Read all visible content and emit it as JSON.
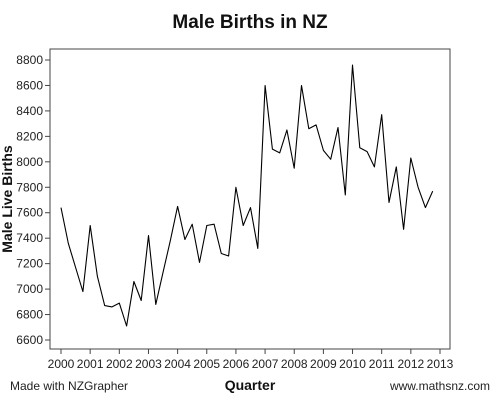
{
  "chart_data": {
    "type": "line",
    "title": "Male Births in NZ",
    "xlabel": "Quarter",
    "ylabel": "Male Live Births",
    "xlim": [
      2000,
      2013
    ],
    "ylim": [
      6600,
      8800
    ],
    "x_ticks": [
      "2000",
      "2001",
      "2002",
      "2003",
      "2004",
      "2005",
      "2006",
      "2007",
      "2008",
      "2009",
      "2010",
      "2011",
      "2012",
      "2013"
    ],
    "y_ticks": [
      "6600",
      "6800",
      "7000",
      "7200",
      "7400",
      "7600",
      "7800",
      "8000",
      "8200",
      "8400",
      "8600",
      "8800"
    ],
    "grid": false,
    "legend": "none",
    "line_color": "#000000",
    "series": [
      {
        "x": [
          2000.0,
          2000.25,
          2000.5,
          2000.75,
          2001.0,
          2001.25,
          2001.5,
          2001.75,
          2002.0,
          2002.25,
          2002.5,
          2002.75,
          2003.0,
          2003.25,
          2003.5,
          2003.75,
          2004.0,
          2004.25,
          2004.5,
          2004.75,
          2005.0,
          2005.25,
          2005.5,
          2005.75,
          2006.0,
          2006.25,
          2006.5,
          2006.75,
          2007.0,
          2007.25,
          2007.5,
          2007.75,
          2008.0,
          2008.25,
          2008.5,
          2008.75,
          2009.0,
          2009.25,
          2009.5,
          2009.75,
          2010.0,
          2010.25,
          2010.5,
          2010.75,
          2011.0,
          2011.25,
          2011.5,
          2011.75,
          2012.0,
          2012.25,
          2012.5,
          2012.75
        ],
        "y": [
          7640,
          7360,
          7170,
          6980,
          7500,
          7100,
          6870,
          6860,
          6890,
          6710,
          7060,
          6910,
          7420,
          6880,
          7130,
          7380,
          7650,
          7390,
          7510,
          7210,
          7500,
          7510,
          7280,
          7260,
          7800,
          7500,
          7640,
          7320,
          8600,
          8100,
          8070,
          8250,
          7950,
          8600,
          8260,
          8290,
          8090,
          8020,
          8270,
          7740,
          8760,
          8110,
          8080,
          7960,
          8370,
          7680,
          7960,
          7470,
          8030,
          7800,
          7640,
          7770
        ]
      }
    ]
  },
  "footer": {
    "left": "Made with NZGrapher",
    "right": "www.mathsnz.com"
  }
}
